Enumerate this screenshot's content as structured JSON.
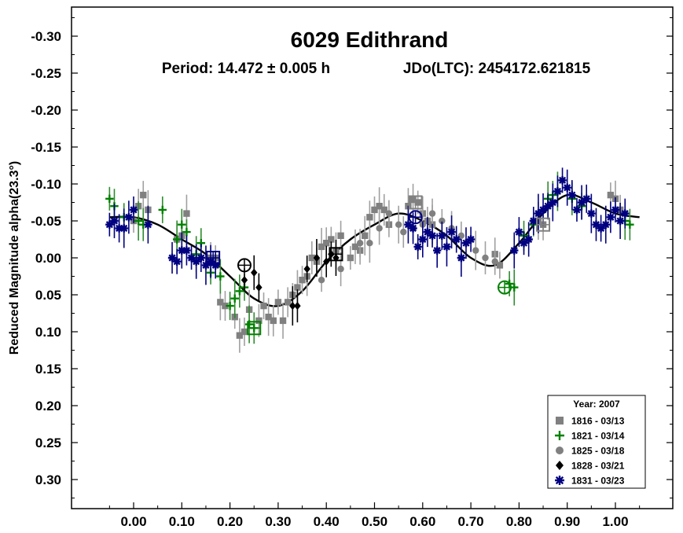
{
  "chart_data": {
    "type": "scatter",
    "title": "6029 Edithrand",
    "subtitle_period": "Period: 14.472 ± 0.005 h",
    "subtitle_epoch": "JDo(LTC): 2454172.621815",
    "xlabel": "",
    "ylabel": "Reduced Magnitude alpha(23.3°)",
    "xlim": [
      -0.12,
      1.12
    ],
    "ylim": [
      0.33,
      -0.33
    ],
    "y_inverted": true,
    "x_ticks": [
      "0.00",
      "0.10",
      "0.20",
      "0.30",
      "0.40",
      "0.50",
      "0.60",
      "0.70",
      "0.80",
      "0.90",
      "1.00"
    ],
    "y_ticks": [
      "-0.30",
      "-0.25",
      "-0.20",
      "-0.15",
      "-0.10",
      "-0.05",
      "0.00",
      "0.05",
      "0.10",
      "0.15",
      "0.20",
      "0.25",
      "0.30"
    ],
    "grid": false,
    "legend": {
      "placement": "bottom-right",
      "title": "Year: 2007"
    },
    "fit_curve": {
      "x": [
        -0.05,
        0.0,
        0.05,
        0.1,
        0.15,
        0.2,
        0.25,
        0.3,
        0.35,
        0.4,
        0.45,
        0.5,
        0.55,
        0.6,
        0.65,
        0.7,
        0.75,
        0.8,
        0.85,
        0.9,
        0.95,
        1.0,
        1.05
      ],
      "y": [
        -0.055,
        -0.055,
        -0.045,
        -0.025,
        -0.005,
        0.025,
        0.055,
        0.065,
        0.045,
        0.005,
        -0.025,
        -0.045,
        -0.06,
        -0.05,
        -0.03,
        0.0,
        0.01,
        -0.02,
        -0.06,
        -0.085,
        -0.075,
        -0.06,
        -0.055
      ]
    },
    "series": [
      {
        "name": "1816 - 03/13",
        "marker": "square",
        "color": "#808080",
        "points": [
          [
            0.0,
            -0.05
          ],
          [
            0.01,
            -0.07
          ],
          [
            0.02,
            -0.085
          ],
          [
            0.03,
            -0.065
          ],
          [
            0.09,
            -0.025
          ],
          [
            0.1,
            -0.03
          ],
          [
            0.11,
            -0.06
          ],
          [
            0.16,
            0.0
          ],
          [
            0.17,
            0.0
          ],
          [
            0.18,
            0.06
          ],
          [
            0.19,
            0.065
          ],
          [
            0.21,
            0.08
          ],
          [
            0.22,
            0.105
          ],
          [
            0.23,
            0.1
          ],
          [
            0.24,
            0.07
          ],
          [
            0.26,
            0.085
          ],
          [
            0.27,
            0.065
          ],
          [
            0.28,
            0.08
          ],
          [
            0.29,
            0.085
          ],
          [
            0.3,
            0.06
          ],
          [
            0.31,
            0.085
          ],
          [
            0.32,
            0.06
          ],
          [
            0.33,
            0.05
          ],
          [
            0.34,
            0.04
          ],
          [
            0.35,
            0.03
          ],
          [
            0.36,
            0.025
          ],
          [
            0.37,
            0.0
          ],
          [
            0.38,
            0.005
          ],
          [
            0.39,
            -0.015
          ],
          [
            0.4,
            -0.02
          ],
          [
            0.41,
            -0.025
          ],
          [
            0.42,
            -0.01
          ],
          [
            0.43,
            -0.03
          ],
          [
            0.45,
            0.0
          ],
          [
            0.46,
            -0.015
          ],
          [
            0.47,
            -0.01
          ],
          [
            0.48,
            -0.03
          ],
          [
            0.49,
            -0.055
          ],
          [
            0.5,
            -0.065
          ],
          [
            0.51,
            -0.07
          ],
          [
            0.52,
            -0.065
          ],
          [
            0.53,
            -0.045
          ],
          [
            0.57,
            -0.07
          ],
          [
            0.58,
            -0.08
          ],
          [
            0.59,
            -0.075
          ],
          [
            0.6,
            -0.06
          ],
          [
            0.61,
            -0.05
          ],
          [
            0.62,
            -0.045
          ],
          [
            0.75,
            -0.005
          ],
          [
            0.76,
            0.01
          ],
          [
            0.84,
            -0.05
          ],
          [
            0.85,
            -0.045
          ],
          [
            0.99,
            -0.085
          ],
          [
            1.0,
            -0.08
          ],
          [
            1.01,
            -0.065
          ]
        ]
      },
      {
        "name": "1821 - 03/14",
        "marker": "plus",
        "color": "#008000",
        "points": [
          [
            -0.05,
            -0.08
          ],
          [
            -0.04,
            -0.07
          ],
          [
            -0.02,
            -0.055
          ],
          [
            0.01,
            -0.05
          ],
          [
            0.02,
            -0.045
          ],
          [
            0.06,
            -0.065
          ],
          [
            0.09,
            -0.025
          ],
          [
            0.1,
            -0.045
          ],
          [
            0.11,
            -0.035
          ],
          [
            0.13,
            -0.005
          ],
          [
            0.14,
            -0.02
          ],
          [
            0.16,
            0.02
          ],
          [
            0.18,
            0.025
          ],
          [
            0.2,
            0.065
          ],
          [
            0.21,
            0.055
          ],
          [
            0.22,
            0.045
          ],
          [
            0.23,
            0.04
          ],
          [
            0.24,
            0.09
          ],
          [
            0.25,
            0.095
          ],
          [
            0.78,
            0.035
          ],
          [
            0.79,
            0.04
          ],
          [
            0.81,
            -0.03
          ],
          [
            0.83,
            -0.045
          ],
          [
            0.86,
            -0.08
          ],
          [
            0.87,
            -0.085
          ],
          [
            0.88,
            -0.09
          ],
          [
            0.91,
            -0.08
          ],
          [
            0.93,
            -0.07
          ],
          [
            1.02,
            -0.05
          ],
          [
            1.03,
            -0.045
          ]
        ]
      },
      {
        "name": "1825 - 03/18",
        "marker": "circle",
        "color": "#808080",
        "points": [
          [
            0.39,
            0.03
          ],
          [
            0.43,
            0.015
          ],
          [
            0.47,
            -0.02
          ],
          [
            0.49,
            -0.02
          ],
          [
            0.51,
            -0.04
          ],
          [
            0.53,
            -0.06
          ],
          [
            0.55,
            -0.045
          ],
          [
            0.56,
            -0.035
          ],
          [
            0.58,
            -0.04
          ],
          [
            0.6,
            -0.045
          ],
          [
            0.62,
            -0.06
          ],
          [
            0.64,
            -0.05
          ],
          [
            0.66,
            -0.04
          ],
          [
            0.68,
            -0.03
          ],
          [
            0.71,
            -0.01
          ],
          [
            0.73,
            0.0
          ],
          [
            0.75,
            0.005
          ]
        ]
      },
      {
        "name": "1828 - 03/21",
        "marker": "diamond",
        "color": "#000000",
        "points": [
          [
            0.23,
            0.03
          ],
          [
            0.25,
            0.02
          ],
          [
            0.26,
            0.04
          ],
          [
            0.33,
            0.065
          ],
          [
            0.34,
            0.065
          ],
          [
            0.36,
            0.015
          ],
          [
            0.38,
            0.0
          ],
          [
            0.4,
            0.005
          ],
          [
            0.41,
            -0.005
          ],
          [
            0.42,
            0.0
          ]
        ]
      },
      {
        "name": "1831 - 03/23",
        "marker": "asterisk",
        "color": "#000080",
        "points": [
          [
            -0.05,
            -0.045
          ],
          [
            -0.04,
            -0.05
          ],
          [
            -0.03,
            -0.04
          ],
          [
            -0.02,
            -0.04
          ],
          [
            -0.01,
            -0.055
          ],
          [
            0.0,
            -0.065
          ],
          [
            0.03,
            -0.045
          ],
          [
            0.08,
            0.0
          ],
          [
            0.09,
            0.005
          ],
          [
            0.1,
            -0.01
          ],
          [
            0.11,
            -0.01
          ],
          [
            0.12,
            0.0
          ],
          [
            0.13,
            0.005
          ],
          [
            0.14,
            0.0
          ],
          [
            0.15,
            0.01
          ],
          [
            0.16,
            0.005
          ],
          [
            0.17,
            0.01
          ],
          [
            0.57,
            -0.045
          ],
          [
            0.58,
            -0.04
          ],
          [
            0.59,
            -0.015
          ],
          [
            0.6,
            -0.025
          ],
          [
            0.61,
            -0.035
          ],
          [
            0.62,
            -0.03
          ],
          [
            0.63,
            -0.01
          ],
          [
            0.64,
            -0.03
          ],
          [
            0.65,
            -0.015
          ],
          [
            0.66,
            -0.035
          ],
          [
            0.67,
            -0.025
          ],
          [
            0.68,
            0.0
          ],
          [
            0.69,
            -0.02
          ],
          [
            0.7,
            -0.025
          ],
          [
            0.79,
            -0.01
          ],
          [
            0.8,
            -0.035
          ],
          [
            0.81,
            -0.02
          ],
          [
            0.82,
            -0.025
          ],
          [
            0.83,
            -0.05
          ],
          [
            0.84,
            -0.06
          ],
          [
            0.85,
            -0.065
          ],
          [
            0.86,
            -0.07
          ],
          [
            0.87,
            -0.075
          ],
          [
            0.88,
            -0.09
          ],
          [
            0.89,
            -0.105
          ],
          [
            0.9,
            -0.095
          ],
          [
            0.91,
            -0.085
          ],
          [
            0.92,
            -0.065
          ],
          [
            0.93,
            -0.075
          ],
          [
            0.94,
            -0.08
          ],
          [
            0.95,
            -0.06
          ],
          [
            0.96,
            -0.045
          ],
          [
            0.97,
            -0.04
          ],
          [
            0.98,
            -0.045
          ],
          [
            0.99,
            -0.055
          ],
          [
            1.0,
            -0.065
          ],
          [
            1.01,
            -0.05
          ],
          [
            1.02,
            -0.06
          ]
        ]
      }
    ],
    "large_markers": [
      {
        "marker": "square",
        "color": "#000000",
        "x": 0.42,
        "y": -0.005
      },
      {
        "marker": "square",
        "color": "#808080",
        "x": 0.585,
        "y": -0.075
      },
      {
        "marker": "square",
        "color": "#808080",
        "x": 0.85,
        "y": -0.045
      },
      {
        "marker": "square",
        "color": "#000080",
        "x": 0.165,
        "y": 0.0
      },
      {
        "marker": "square",
        "color": "#008000",
        "x": 0.25,
        "y": 0.095
      },
      {
        "marker": "circle",
        "color": "#000000",
        "x": 0.23,
        "y": 0.01
      },
      {
        "marker": "circle",
        "color": "#008000",
        "x": 0.77,
        "y": 0.04
      },
      {
        "marker": "circle",
        "color": "#000080",
        "x": 0.585,
        "y": -0.055
      }
    ]
  }
}
